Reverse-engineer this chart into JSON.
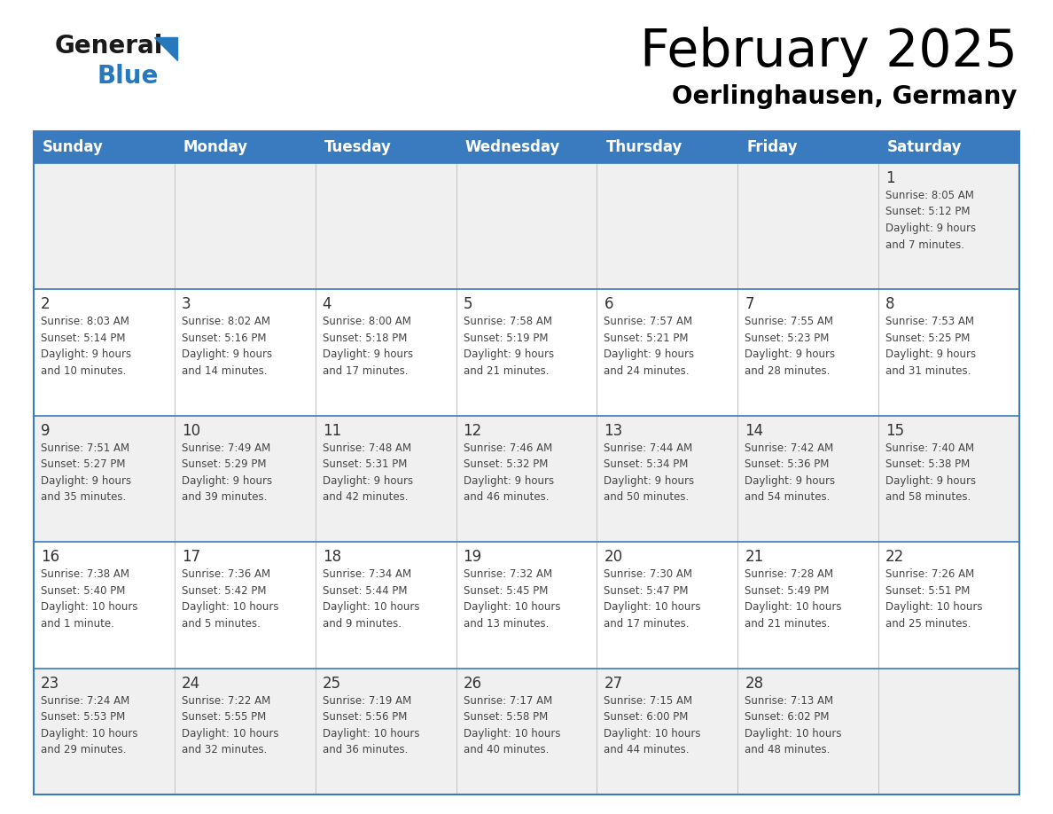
{
  "title": "February 2025",
  "subtitle": "Oerlinghausen, Germany",
  "header_bg_color": "#3a7bbf",
  "header_text_color": "#ffffff",
  "day_names": [
    "Sunday",
    "Monday",
    "Tuesday",
    "Wednesday",
    "Thursday",
    "Friday",
    "Saturday"
  ],
  "cell_bg_row0": "#f0f0f0",
  "cell_bg_row1": "#ffffff",
  "cell_border_color": "#3a7bbf",
  "number_color": "#333333",
  "text_color": "#444444",
  "title_color": "#000000",
  "subtitle_color": "#000000",
  "logo_black": "#1a1a1a",
  "logo_blue": "#2878be",
  "triangle_color": "#2878be",
  "calendar_data": [
    [
      null,
      null,
      null,
      null,
      null,
      null,
      {
        "day": "1",
        "sunrise": "8:05 AM",
        "sunset": "5:12 PM",
        "daylight": "9 hours\nand 7 minutes."
      }
    ],
    [
      {
        "day": "2",
        "sunrise": "8:03 AM",
        "sunset": "5:14 PM",
        "daylight": "9 hours\nand 10 minutes."
      },
      {
        "day": "3",
        "sunrise": "8:02 AM",
        "sunset": "5:16 PM",
        "daylight": "9 hours\nand 14 minutes."
      },
      {
        "day": "4",
        "sunrise": "8:00 AM",
        "sunset": "5:18 PM",
        "daylight": "9 hours\nand 17 minutes."
      },
      {
        "day": "5",
        "sunrise": "7:58 AM",
        "sunset": "5:19 PM",
        "daylight": "9 hours\nand 21 minutes."
      },
      {
        "day": "6",
        "sunrise": "7:57 AM",
        "sunset": "5:21 PM",
        "daylight": "9 hours\nand 24 minutes."
      },
      {
        "day": "7",
        "sunrise": "7:55 AM",
        "sunset": "5:23 PM",
        "daylight": "9 hours\nand 28 minutes."
      },
      {
        "day": "8",
        "sunrise": "7:53 AM",
        "sunset": "5:25 PM",
        "daylight": "9 hours\nand 31 minutes."
      }
    ],
    [
      {
        "day": "9",
        "sunrise": "7:51 AM",
        "sunset": "5:27 PM",
        "daylight": "9 hours\nand 35 minutes."
      },
      {
        "day": "10",
        "sunrise": "7:49 AM",
        "sunset": "5:29 PM",
        "daylight": "9 hours\nand 39 minutes."
      },
      {
        "day": "11",
        "sunrise": "7:48 AM",
        "sunset": "5:31 PM",
        "daylight": "9 hours\nand 42 minutes."
      },
      {
        "day": "12",
        "sunrise": "7:46 AM",
        "sunset": "5:32 PM",
        "daylight": "9 hours\nand 46 minutes."
      },
      {
        "day": "13",
        "sunrise": "7:44 AM",
        "sunset": "5:34 PM",
        "daylight": "9 hours\nand 50 minutes."
      },
      {
        "day": "14",
        "sunrise": "7:42 AM",
        "sunset": "5:36 PM",
        "daylight": "9 hours\nand 54 minutes."
      },
      {
        "day": "15",
        "sunrise": "7:40 AM",
        "sunset": "5:38 PM",
        "daylight": "9 hours\nand 58 minutes."
      }
    ],
    [
      {
        "day": "16",
        "sunrise": "7:38 AM",
        "sunset": "5:40 PM",
        "daylight": "10 hours\nand 1 minute."
      },
      {
        "day": "17",
        "sunrise": "7:36 AM",
        "sunset": "5:42 PM",
        "daylight": "10 hours\nand 5 minutes."
      },
      {
        "day": "18",
        "sunrise": "7:34 AM",
        "sunset": "5:44 PM",
        "daylight": "10 hours\nand 9 minutes."
      },
      {
        "day": "19",
        "sunrise": "7:32 AM",
        "sunset": "5:45 PM",
        "daylight": "10 hours\nand 13 minutes."
      },
      {
        "day": "20",
        "sunrise": "7:30 AM",
        "sunset": "5:47 PM",
        "daylight": "10 hours\nand 17 minutes."
      },
      {
        "day": "21",
        "sunrise": "7:28 AM",
        "sunset": "5:49 PM",
        "daylight": "10 hours\nand 21 minutes."
      },
      {
        "day": "22",
        "sunrise": "7:26 AM",
        "sunset": "5:51 PM",
        "daylight": "10 hours\nand 25 minutes."
      }
    ],
    [
      {
        "day": "23",
        "sunrise": "7:24 AM",
        "sunset": "5:53 PM",
        "daylight": "10 hours\nand 29 minutes."
      },
      {
        "day": "24",
        "sunrise": "7:22 AM",
        "sunset": "5:55 PM",
        "daylight": "10 hours\nand 32 minutes."
      },
      {
        "day": "25",
        "sunrise": "7:19 AM",
        "sunset": "5:56 PM",
        "daylight": "10 hours\nand 36 minutes."
      },
      {
        "day": "26",
        "sunrise": "7:17 AM",
        "sunset": "5:58 PM",
        "daylight": "10 hours\nand 40 minutes."
      },
      {
        "day": "27",
        "sunrise": "7:15 AM",
        "sunset": "6:00 PM",
        "daylight": "10 hours\nand 44 minutes."
      },
      {
        "day": "28",
        "sunrise": "7:13 AM",
        "sunset": "6:02 PM",
        "daylight": "10 hours\nand 48 minutes."
      },
      null
    ]
  ]
}
